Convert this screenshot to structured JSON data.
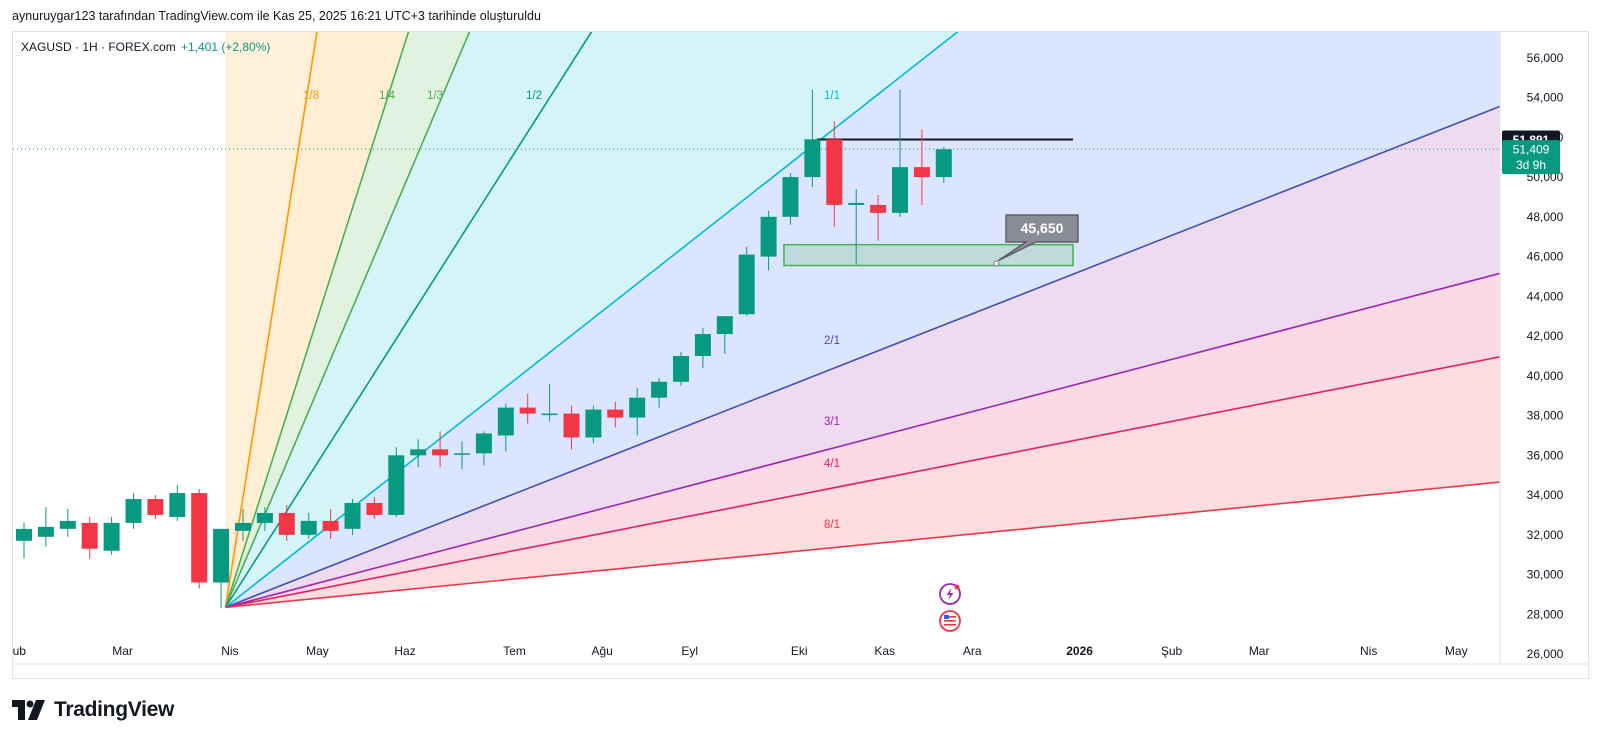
{
  "caption": "aynuruygar123 tarafından TradingView.com ile Kas 25, 2025 16:21 UTC+3 tarihinde oluşturuldu",
  "logo_text": "TradingView",
  "colors": {
    "up": "#089981",
    "down": "#f23645",
    "axis_text": "#131722",
    "price_line": "#089981"
  },
  "chart_data": {
    "type": "candlestick",
    "symbol": "XAGUSD",
    "interval": "1H",
    "source": "FOREX.com",
    "symbol_header": "XAGUSD · 1H · FOREX.com",
    "change_text": "+1,401 (+2,80%)",
    "ylim": [
      25.5,
      57.3
    ],
    "y_ticks": [
      26,
      28,
      30,
      32,
      34,
      36,
      38,
      40,
      42,
      44,
      46,
      48,
      50,
      52,
      54,
      56
    ],
    "y_tick_labels": [
      "26,000",
      "28,000",
      "30,000",
      "32,000",
      "34,000",
      "36,000",
      "38,000",
      "40,000",
      "42,000",
      "44,000",
      "46,000",
      "48,000",
      "50,000",
      "52,000",
      "54,000",
      "56,000"
    ],
    "x_labels": [
      {
        "label": "Şub",
        "index": -0.4
      },
      {
        "label": "Mar",
        "index": 4.5
      },
      {
        "label": "Nis",
        "index": 9.4
      },
      {
        "label": "May",
        "index": 13.4
      },
      {
        "label": "Haz",
        "index": 17.4
      },
      {
        "label": "Tem",
        "index": 22.4
      },
      {
        "label": "Ağu",
        "index": 26.4
      },
      {
        "label": "Eyl",
        "index": 30.4
      },
      {
        "label": "Eki",
        "index": 35.4
      },
      {
        "label": "Kas",
        "index": 39.3
      },
      {
        "label": "Ara",
        "index": 43.3
      },
      {
        "label": "2026",
        "index": 48.2
      },
      {
        "label": "Şub",
        "index": 52.4
      },
      {
        "label": "Mar",
        "index": 56.4
      },
      {
        "label": "Nis",
        "index": 61.4
      },
      {
        "label": "May",
        "index": 65.4
      }
    ],
    "candles": [
      {
        "o": 31.7,
        "h": 32.6,
        "l": 30.8,
        "c": 32.3
      },
      {
        "o": 31.9,
        "h": 33.4,
        "l": 31.4,
        "c": 32.4
      },
      {
        "o": 32.3,
        "h": 33.3,
        "l": 31.9,
        "c": 32.7
      },
      {
        "o": 32.6,
        "h": 32.9,
        "l": 30.8,
        "c": 31.3
      },
      {
        "o": 31.2,
        "h": 32.9,
        "l": 31.0,
        "c": 32.6
      },
      {
        "o": 32.6,
        "h": 34.1,
        "l": 32.3,
        "c": 33.8
      },
      {
        "o": 33.8,
        "h": 34.0,
        "l": 32.8,
        "c": 33.0
      },
      {
        "o": 32.9,
        "h": 34.5,
        "l": 32.7,
        "c": 34.1
      },
      {
        "o": 34.1,
        "h": 34.3,
        "l": 29.3,
        "c": 29.6
      },
      {
        "o": 29.6,
        "h": 32.3,
        "l": 28.3,
        "c": 32.3
      },
      {
        "o": 32.2,
        "h": 33.3,
        "l": 31.7,
        "c": 32.6
      },
      {
        "o": 32.6,
        "h": 33.4,
        "l": 32.2,
        "c": 33.1
      },
      {
        "o": 33.1,
        "h": 33.5,
        "l": 31.7,
        "c": 32.0
      },
      {
        "o": 32.0,
        "h": 33.1,
        "l": 31.8,
        "c": 32.7
      },
      {
        "o": 32.7,
        "h": 33.3,
        "l": 31.8,
        "c": 32.2
      },
      {
        "o": 32.3,
        "h": 33.8,
        "l": 32.0,
        "c": 33.6
      },
      {
        "o": 33.6,
        "h": 33.9,
        "l": 32.8,
        "c": 33.0
      },
      {
        "o": 33.0,
        "h": 36.4,
        "l": 32.9,
        "c": 36.0
      },
      {
        "o": 36.0,
        "h": 36.8,
        "l": 35.4,
        "c": 36.3
      },
      {
        "o": 36.3,
        "h": 37.2,
        "l": 35.4,
        "c": 36.0
      },
      {
        "o": 36.1,
        "h": 36.7,
        "l": 35.3,
        "c": 36.1
      },
      {
        "o": 36.1,
        "h": 37.2,
        "l": 35.5,
        "c": 37.1
      },
      {
        "o": 37.0,
        "h": 38.6,
        "l": 36.2,
        "c": 38.4
      },
      {
        "o": 38.4,
        "h": 39.1,
        "l": 37.6,
        "c": 38.1
      },
      {
        "o": 38.1,
        "h": 39.6,
        "l": 37.7,
        "c": 38.1
      },
      {
        "o": 38.1,
        "h": 38.5,
        "l": 36.3,
        "c": 36.9
      },
      {
        "o": 36.9,
        "h": 38.5,
        "l": 36.6,
        "c": 38.3
      },
      {
        "o": 38.3,
        "h": 38.7,
        "l": 37.4,
        "c": 37.9
      },
      {
        "o": 37.9,
        "h": 39.4,
        "l": 37.0,
        "c": 38.9
      },
      {
        "o": 38.9,
        "h": 39.9,
        "l": 38.4,
        "c": 39.7
      },
      {
        "o": 39.7,
        "h": 41.2,
        "l": 39.5,
        "c": 41.0
      },
      {
        "o": 41.0,
        "h": 42.4,
        "l": 40.4,
        "c": 42.1
      },
      {
        "o": 42.1,
        "h": 43.0,
        "l": 41.1,
        "c": 43.0
      },
      {
        "o": 43.1,
        "h": 46.5,
        "l": 43.0,
        "c": 46.1
      },
      {
        "o": 46.0,
        "h": 48.3,
        "l": 45.3,
        "c": 48.0
      },
      {
        "o": 48.0,
        "h": 50.2,
        "l": 47.6,
        "c": 50.0
      },
      {
        "o": 50.0,
        "h": 54.4,
        "l": 49.5,
        "c": 51.9
      },
      {
        "o": 51.9,
        "h": 52.8,
        "l": 47.5,
        "c": 48.6
      },
      {
        "o": 48.6,
        "h": 49.4,
        "l": 45.6,
        "c": 48.7
      },
      {
        "o": 48.6,
        "h": 49.1,
        "l": 46.8,
        "c": 48.2
      },
      {
        "o": 48.2,
        "h": 54.4,
        "l": 48.0,
        "c": 50.5
      },
      {
        "o": 50.5,
        "h": 52.4,
        "l": 48.6,
        "c": 50.0
      },
      {
        "o": 50.0,
        "h": 51.5,
        "l": 49.7,
        "c": 51.4
      }
    ],
    "gann_fan": {
      "origin_index": 9.2,
      "origin_price": 28.35,
      "labels": [
        "1/8",
        "1/4",
        "1/3",
        "1/2",
        "1/1",
        "2/1",
        "3/1",
        "4/1",
        "8/1"
      ]
    },
    "horizontal_line": {
      "price": 51.891,
      "label": "51,891",
      "from_index": 36.2,
      "to_index": 47.9
    },
    "box": {
      "top": 46.6,
      "bottom": 45.55,
      "from_index": 34.7,
      "to_index": 47.9
    },
    "callout": {
      "label": "45,650",
      "price": 45.65,
      "index": 44.4
    },
    "last_price": {
      "value": 51.409,
      "label": "51,409",
      "countdown": "3d 9h"
    }
  }
}
